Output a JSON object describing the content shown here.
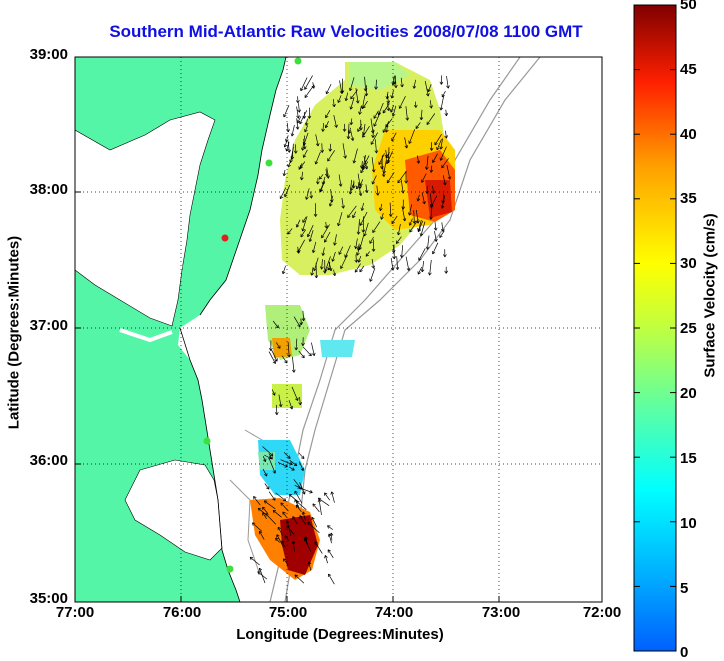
{
  "map": {
    "title": "Southern Mid-Atlantic Raw Velocities 2008/07/08 1100 GMT",
    "xlabel": "Longitude (Degrees:Minutes)",
    "ylabel": "Latitude (Degrees:Minutes)",
    "x_ticks": [
      "77:00",
      "76:00",
      "75:00",
      "74:00",
      "73:00",
      "72:00"
    ],
    "y_ticks": [
      "39:00",
      "38:00",
      "37:00",
      "36:00",
      "35:00"
    ],
    "land_color": "#55f5a8",
    "grid": "dotted"
  },
  "colorbar": {
    "label": "Surface Velocity (cm/s)",
    "ticks": [
      "50",
      "45",
      "40",
      "35",
      "30",
      "25",
      "20",
      "15",
      "10",
      "5",
      "0"
    ],
    "range": [
      0,
      50
    ],
    "colormap": "jet"
  }
}
